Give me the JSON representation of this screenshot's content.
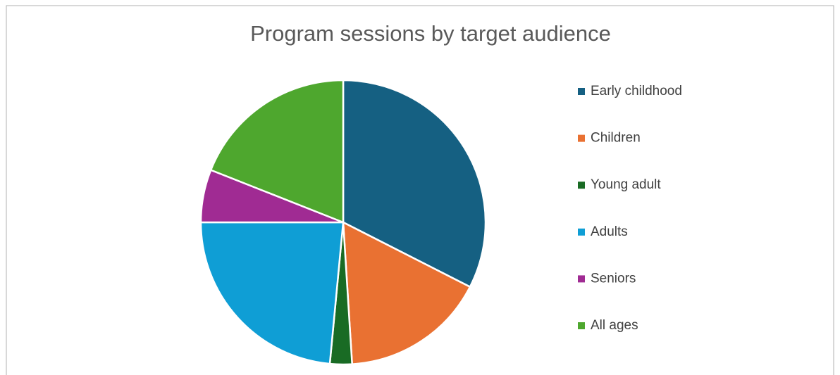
{
  "chart_data": {
    "type": "pie",
    "title": "Program sessions by target audience",
    "categories": [
      "Early childhood",
      "Children",
      "Young adult",
      "Adults",
      "Seniors",
      "All ages"
    ],
    "values": [
      32.5,
      16.5,
      2.5,
      23.5,
      6,
      19
    ],
    "colors": [
      "#156082",
      "#e97132",
      "#196b24",
      "#0f9ed5",
      "#a02b93",
      "#4ea72e"
    ],
    "legend": "right"
  }
}
